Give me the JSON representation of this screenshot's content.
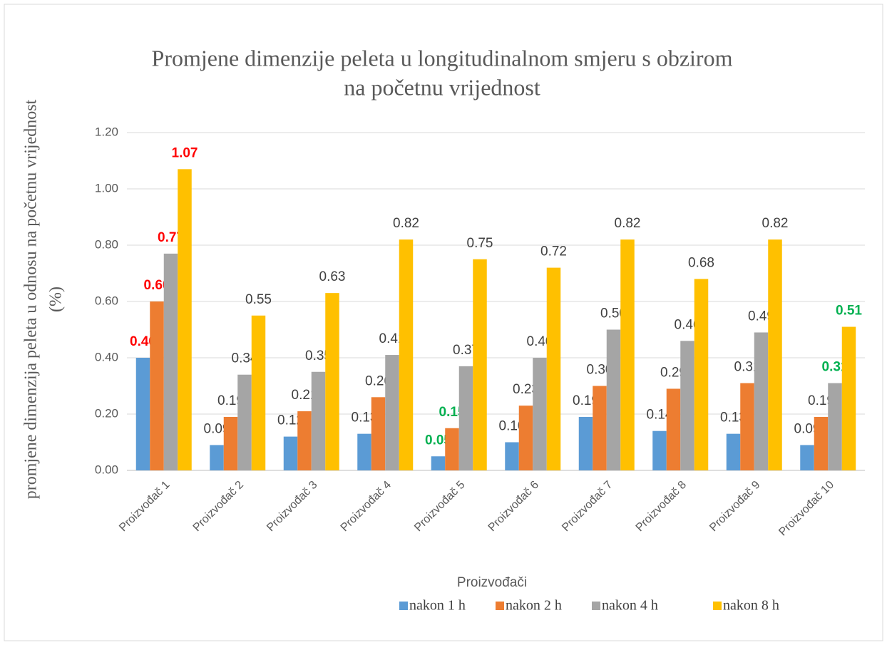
{
  "chart_data": {
    "type": "bar",
    "title": [
      "Promjene dimenzije peleta u longitudinalnom smjeru s obzirom",
      "na početnu vrijednost"
    ],
    "y_label": [
      "promjene dimenzija peleta u odnosu na početnu vrijednost",
      "(%)"
    ],
    "x_label": "Proizvođači",
    "categories": [
      "Proizvođač 1",
      "Proizvođač 2",
      "Proizvođač 3",
      "Proizvođač 4",
      "Proizvođač 5",
      "Proizvođač 6",
      "Proizvođač 7",
      "Proizvođač 8",
      "Proizvođač 9",
      "Proizvođač 10"
    ],
    "label_color": "#404040",
    "series": [
      {
        "name": "nakon 1 h",
        "color": "#5b9bd5",
        "values": [
          0.4,
          0.09,
          0.12,
          0.13,
          0.05,
          0.1,
          0.19,
          0.14,
          0.13,
          0.09
        ],
        "value_labels": [
          "0.40",
          "0.09",
          "0.12",
          "0.13",
          "0.05",
          "0.10",
          "0.19",
          "0.14",
          "0.13",
          "0.09"
        ],
        "label_colors": [
          "#ff0000",
          "#404040",
          "#404040",
          "#404040",
          "#00b050",
          "#404040",
          "#404040",
          "#404040",
          "#404040",
          "#404040"
        ]
      },
      {
        "name": "nakon 2 h",
        "color": "#ed7d31",
        "values": [
          0.6,
          0.19,
          0.21,
          0.26,
          0.15,
          0.23,
          0.3,
          0.29,
          0.31,
          0.19
        ],
        "value_labels": [
          "0.60",
          "0.19",
          "0.21",
          "0.26",
          "0.15",
          "0.23",
          "0.30",
          "0.29",
          "0.31",
          "0.19"
        ],
        "label_colors": [
          "#ff0000",
          "#404040",
          "#404040",
          "#404040",
          "#00b050",
          "#404040",
          "#404040",
          "#404040",
          "#404040",
          "#404040"
        ]
      },
      {
        "name": "nakon 4 h",
        "color": "#a5a5a5",
        "values": [
          0.77,
          0.34,
          0.35,
          0.41,
          0.37,
          0.4,
          0.5,
          0.46,
          0.49,
          0.31
        ],
        "value_labels": [
          "0.77",
          "0.34",
          "0.35",
          "0.41",
          "0.37",
          "0.40",
          "0.50",
          "0.46",
          "0.49",
          "0.31"
        ],
        "label_colors": [
          "#ff0000",
          "#404040",
          "#404040",
          "#404040",
          "#404040",
          "#404040",
          "#404040",
          "#404040",
          "#404040",
          "#00b050"
        ]
      },
      {
        "name": "nakon 8 h",
        "color": "#ffc000",
        "values": [
          1.07,
          0.55,
          0.63,
          0.82,
          0.75,
          0.72,
          0.82,
          0.68,
          0.82,
          0.51
        ],
        "value_labels": [
          "1.07",
          "0.55",
          "0.63",
          "0.82",
          "0.75",
          "0.72",
          "0.82",
          "0.68",
          "0.82",
          "0.51"
        ],
        "label_colors": [
          "#ff0000",
          "#404040",
          "#404040",
          "#404040",
          "#404040",
          "#404040",
          "#404040",
          "#404040",
          "#404040",
          "#00b050"
        ]
      }
    ],
    "ylim": [
      0,
      1.2
    ],
    "yticks": [
      {
        "value": 0,
        "label": "0.00"
      },
      {
        "value": 0.2,
        "label": "0.20"
      },
      {
        "value": 0.4,
        "label": "0.40"
      },
      {
        "value": 0.6,
        "label": "0.60"
      },
      {
        "value": 0.8,
        "label": "0.80"
      },
      {
        "value": 1.0,
        "label": "1.00"
      },
      {
        "value": 1.2,
        "label": "1.20"
      }
    ],
    "grid": true,
    "legend": "bottom-right"
  }
}
